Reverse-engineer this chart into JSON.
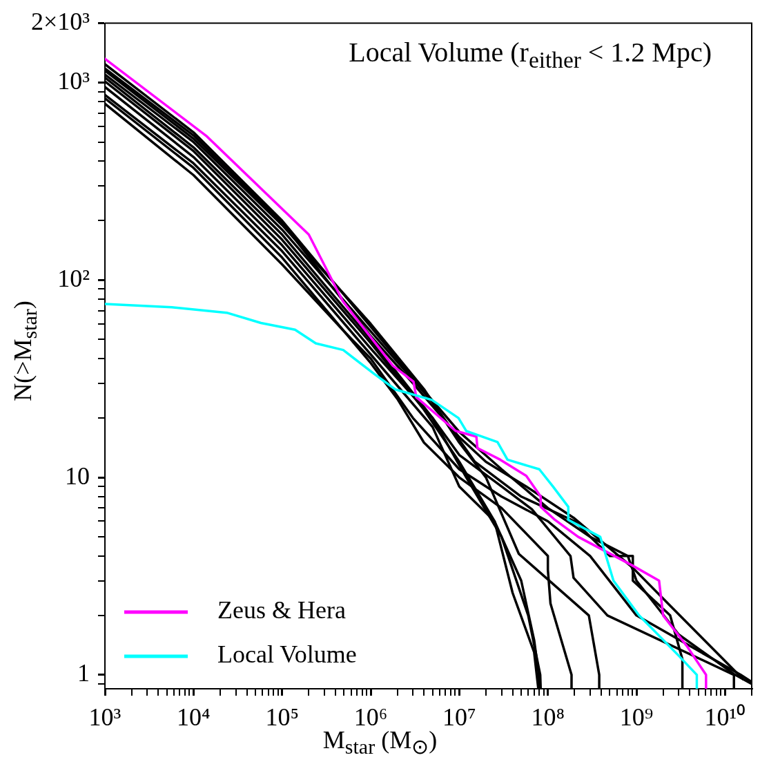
{
  "chart_data": {
    "type": "line",
    "title": "Local Volume (r$_{either}$ < 1.2 Mpc)",
    "xlabel": "M$_{star}$ (M$_{⊙}$)",
    "ylabel": "N(>M$_{star}$)",
    "log": "xy",
    "legend": "bottom left",
    "marker": "none",
    "line_style": "solid",
    "xlim": [
      1000.0,
      20000000000.0
    ],
    "ylim": [
      0.85,
      2000
    ],
    "xticks": [
      {
        "value": 1000.0,
        "label": "10³"
      },
      {
        "value": 2000.0,
        "label": null
      },
      {
        "value": 3000.0,
        "label": null
      },
      {
        "value": 4000.0,
        "label": null
      },
      {
        "value": 5000.0,
        "label": null
      },
      {
        "value": 6000.0,
        "label": null
      },
      {
        "value": 7000.0,
        "label": null
      },
      {
        "value": 8000.0,
        "label": null
      },
      {
        "value": 9000.0,
        "label": null
      },
      {
        "value": 10000.0,
        "label": "10⁴"
      },
      {
        "value": 20000.0,
        "label": null
      },
      {
        "value": 30000.0,
        "label": null
      },
      {
        "value": 40000.0,
        "label": null
      },
      {
        "value": 50000.0,
        "label": null
      },
      {
        "value": 60000.0,
        "label": null
      },
      {
        "value": 70000.0,
        "label": null
      },
      {
        "value": 80000.0,
        "label": null
      },
      {
        "value": 90000.0,
        "label": null
      },
      {
        "value": 100000.0,
        "label": "10⁵"
      },
      {
        "value": 200000.0,
        "label": null
      },
      {
        "value": 300000.0,
        "label": null
      },
      {
        "value": 400000.0,
        "label": null
      },
      {
        "value": 500000.0,
        "label": null
      },
      {
        "value": 600000.0,
        "label": null
      },
      {
        "value": 700000.0,
        "label": null
      },
      {
        "value": 800000.0,
        "label": null
      },
      {
        "value": 900000.0,
        "label": null
      },
      {
        "value": 1000000.0,
        "label": "10⁶"
      },
      {
        "value": 2000000.0,
        "label": null
      },
      {
        "value": 3000000.0,
        "label": null
      },
      {
        "value": 4000000.0,
        "label": null
      },
      {
        "value": 5000000.0,
        "label": null
      },
      {
        "value": 6000000.0,
        "label": null
      },
      {
        "value": 7000000.0,
        "label": null
      },
      {
        "value": 8000000.0,
        "label": null
      },
      {
        "value": 9000000.0,
        "label": null
      },
      {
        "value": 10000000.0,
        "label": "10⁷"
      },
      {
        "value": 20000000.0,
        "label": null
      },
      {
        "value": 30000000.0,
        "label": null
      },
      {
        "value": 40000000.0,
        "label": null
      },
      {
        "value": 50000000.0,
        "label": null
      },
      {
        "value": 60000000.0,
        "label": null
      },
      {
        "value": 70000000.0,
        "label": null
      },
      {
        "value": 80000000.0,
        "label": null
      },
      {
        "value": 90000000.0,
        "label": null
      },
      {
        "value": 100000000.0,
        "label": "10⁸"
      },
      {
        "value": 200000000.0,
        "label": null
      },
      {
        "value": 300000000.0,
        "label": null
      },
      {
        "value": 400000000.0,
        "label": null
      },
      {
        "value": 500000000.0,
        "label": null
      },
      {
        "value": 600000000.0,
        "label": null
      },
      {
        "value": 700000000.0,
        "label": null
      },
      {
        "value": 800000000.0,
        "label": null
      },
      {
        "value": 900000000.0,
        "label": null
      },
      {
        "value": 1000000000.0,
        "label": "10⁹"
      },
      {
        "value": 2000000000.0,
        "label": null
      },
      {
        "value": 3000000000.0,
        "label": null
      },
      {
        "value": 4000000000.0,
        "label": null
      },
      {
        "value": 5000000000.0,
        "label": null
      },
      {
        "value": 6000000000.0,
        "label": null
      },
      {
        "value": 7000000000.0,
        "label": null
      },
      {
        "value": 8000000000.0,
        "label": null
      },
      {
        "value": 9000000000.0,
        "label": null
      },
      {
        "value": 10000000000.0,
        "label": "10¹⁰"
      },
      {
        "value": 20000000000.0,
        "label": null
      }
    ],
    "yticks": [
      {
        "value": 0.9,
        "label": null
      },
      1,
      {
        "value": 2,
        "label": null
      },
      {
        "value": 3,
        "label": null
      },
      {
        "value": 4,
        "label": null
      },
      {
        "value": 5,
        "label": null
      },
      {
        "value": 6,
        "label": null
      },
      {
        "value": 7,
        "label": null
      },
      {
        "value": 8,
        "label": null
      },
      {
        "value": 9,
        "label": null
      },
      10,
      {
        "value": 20,
        "label": null
      },
      {
        "value": 30,
        "label": null
      },
      {
        "value": 40,
        "label": null
      },
      {
        "value": 50,
        "label": null
      },
      {
        "value": 60,
        "label": null
      },
      {
        "value": 70,
        "label": null
      },
      {
        "value": 80,
        "label": null
      },
      {
        "value": 90,
        "label": null
      },
      {
        "value": 100,
        "label": "10²"
      },
      {
        "value": 200,
        "label": null
      },
      {
        "value": 300,
        "label": null
      },
      {
        "value": 400,
        "label": null
      },
      {
        "value": 500,
        "label": null
      },
      {
        "value": 600,
        "label": null
      },
      {
        "value": 700,
        "label": null
      },
      {
        "value": 800,
        "label": null
      },
      {
        "value": 900,
        "label": null
      },
      {
        "value": 1000,
        "label": "10³"
      },
      {
        "value": 2000,
        "label": "2×10³"
      }
    ],
    "series": [
      {
        "color": "#000000",
        "x": [
          1000.0,
          10000.0,
          100000.0,
          1000000.0,
          3000000.0,
          10000000.0,
          30000000.0,
          100000000.0,
          300000000.0,
          800000000.0,
          1000000000.0,
          3000000000.0,
          13000000000.0,
          20000000000.0
        ],
        "values": [
          1240,
          560,
          200,
          58,
          32,
          17,
          11,
          7,
          5,
          4,
          3,
          1.6,
          1.0,
          0.9
        ]
      },
      {
        "color": "#000000",
        "x": [
          1000.0,
          10000.0,
          100000.0,
          1000000.0,
          5000000.0,
          15000000.0,
          50000000.0,
          200000000.0,
          500000000.0,
          910000000.0,
          910000000.0,
          2400000000.0,
          3300000000.0,
          3300000000.0
        ],
        "values": [
          1100,
          500,
          180,
          55,
          24,
          12,
          8,
          6,
          4,
          4,
          3,
          2,
          1.2,
          0.85
        ]
      },
      {
        "color": "#000000",
        "x": [
          1000.0,
          10000.0,
          100000.0,
          1000000.0,
          4000000.0,
          10000000.0,
          25000000.0,
          50000000.0,
          70000000.0,
          79000000.0,
          80000000.0
        ],
        "values": [
          1015,
          450,
          160,
          48,
          22,
          12,
          6,
          3,
          1.5,
          1,
          0.85
        ]
      },
      {
        "color": "#000000",
        "x": [
          1000.0,
          10000.0,
          100000.0,
          1000000.0,
          5000000.0,
          12000000.0,
          30000000.0,
          60000000.0,
          82000000.0,
          83000000.0
        ],
        "values": [
          1060,
          470,
          170,
          50,
          20,
          10,
          5,
          2,
          1,
          0.85
        ]
      },
      {
        "color": "#000000",
        "x": [
          1000.0,
          10000.0,
          100000.0,
          1000000.0,
          5000000.0,
          10000000.0,
          25000000.0,
          40000000.0,
          70000000.0,
          78000000.0
        ],
        "values": [
          867,
          390,
          140,
          42,
          18,
          9,
          6,
          2.6,
          1.3,
          0.85
        ]
      },
      {
        "color": "#000000",
        "x": [
          1000.0,
          10000.0,
          100000.0,
          500000.0,
          1000000.0,
          3000000.0,
          10000000.0,
          30000000.0,
          100000000.0,
          300000000.0,
          1000000000.0,
          15000000000.0,
          20000000000.0
        ],
        "values": [
          782,
          340,
          120,
          55,
          40,
          20,
          11,
          8,
          6,
          4,
          2,
          1.0,
          0.92
        ]
      },
      {
        "color": "#000000",
        "x": [
          1000.0,
          10000.0,
          100000.0,
          1000000.0,
          2000000.0,
          4000000.0,
          10000000.0,
          30000000.0,
          100000000.0,
          100000000.0,
          107000000.0,
          185000000.0,
          185000000.0
        ],
        "values": [
          833,
          370,
          130,
          38,
          25,
          15,
          10,
          7,
          4,
          3.4,
          2.3,
          1,
          0.85
        ]
      },
      {
        "color": "#000000",
        "x": [
          1000.0,
          10000.0,
          100000.0,
          1000000.0,
          4000000.0,
          10000000.0,
          20000000.0,
          47000000.0,
          290000000.0,
          380000000.0,
          380000000.0
        ],
        "values": [
          1150,
          520,
          190,
          60,
          28,
          15,
          10,
          4.1,
          2,
          1,
          0.85
        ]
      },
      {
        "color": "#000000",
        "x": [
          1000.0,
          10000.0,
          100000.0,
          1000000.0,
          5000000.0,
          10000000.0,
          30000000.0,
          66000000.0,
          180000000.0,
          195000000.0,
          470000000.0,
          12600000000.0,
          12600000000.0
        ],
        "values": [
          950,
          420,
          150,
          45,
          20,
          13,
          9,
          6.9,
          4,
          3.1,
          2,
          1,
          0.85
        ]
      },
      {
        "color": "#000000",
        "x": [
          1000.0,
          10000.0,
          100000.0,
          1000000.0,
          3000000.0,
          10000000.0,
          20000000.0,
          57000000.0,
          195000000.0,
          900000000.0,
          2500000000.0,
          16000000000.0
        ],
        "values": [
          1180,
          540,
          195,
          52,
          30,
          16,
          12,
          9,
          6.25,
          3.5,
          2.2,
          0.95
        ]
      },
      {
        "name": "Zeus & Hera",
        "color": "#ff00ff",
        "x": [
          1000.0,
          13900.0,
          200000.0,
          486000.0,
          1780000.0,
          3040000.0,
          3270000.0,
          9100000.0,
          15600000.0,
          16000000.0,
          29000000.0,
          57000000.0,
          83000000.0,
          83000000.0,
          120000000.0,
          220000000.0,
          880000000.0,
          1800000000.0,
          2000000000.0,
          3700000000.0,
          6100000000.0,
          6100000000.0
        ],
        "values": [
          1321,
          538,
          170,
          78,
          36.8,
          30.6,
          25.5,
          17.2,
          16.1,
          14.1,
          12.3,
          10.2,
          8,
          7.1,
          6.1,
          5,
          3.6,
          3,
          2,
          1.4,
          1,
          0.85
        ]
      },
      {
        "name": "Local Volume",
        "color": "#00ffff",
        "x": [
          1000.0,
          5700.0,
          23700.0,
          57700.0,
          140000.0,
          240000.0,
          490000.0,
          1100000.0,
          1900000.0,
          4900000.0,
          9800000.0,
          12000000.0,
          27000000.0,
          35000000.0,
          80000000.0,
          114000000.0,
          170000000.0,
          170000000.0,
          390000000.0,
          550000000.0,
          1070000000.0,
          3000000000.0,
          4800000000.0,
          4800000000.0
        ],
        "values": [
          75.7,
          72.8,
          68.3,
          60.6,
          56,
          47.8,
          44.2,
          33.4,
          27.9,
          24.7,
          20,
          17.2,
          15.1,
          12.3,
          11,
          9,
          7.1,
          6.1,
          5,
          3,
          2,
          1.25,
          1,
          0.85
        ]
      }
    ]
  }
}
